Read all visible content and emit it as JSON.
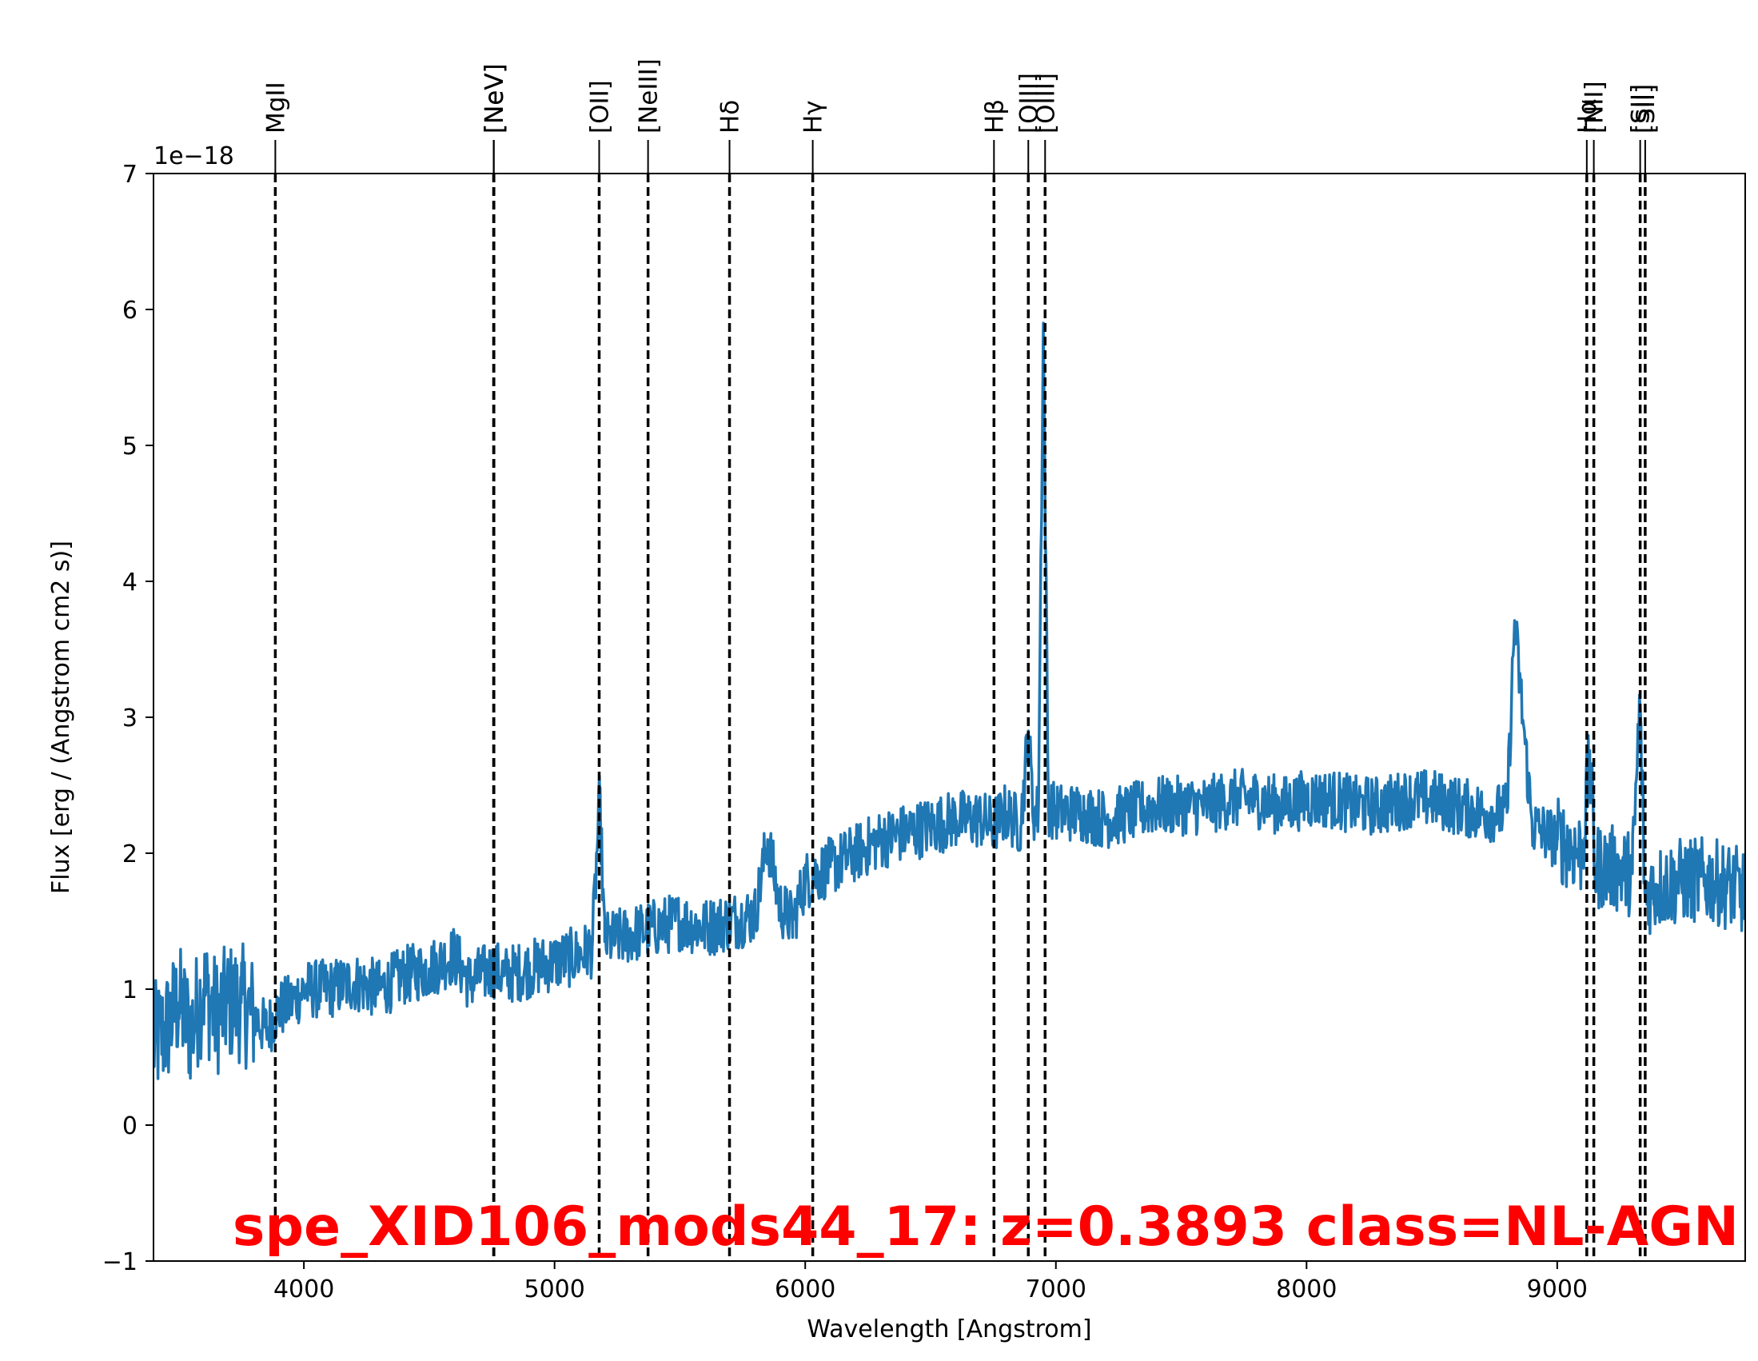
{
  "chart_data": {
    "type": "line",
    "annotation": "spe_XID106_mods44_17: z=0.3893 class=NL-AGN",
    "annotation_color": "#ff0000",
    "xlabel": "Wavelength [Angstrom]",
    "ylabel": "Flux [erg / (Angstrom cm2 s)]",
    "y_offset_label": "1e−18",
    "xlim": [
      3400,
      9750
    ],
    "ylim": [
      -1,
      7
    ],
    "x_ticks": [
      4000,
      5000,
      6000,
      7000,
      8000,
      9000
    ],
    "x_tick_labels": [
      "4000",
      "5000",
      "6000",
      "7000",
      "8000",
      "9000"
    ],
    "y_ticks": [
      -1,
      0,
      1,
      2,
      3,
      4,
      5,
      6,
      7
    ],
    "y_tick_labels": [
      "−1",
      "0",
      "1",
      "2",
      "3",
      "4",
      "5",
      "6",
      "7"
    ],
    "grid": false,
    "series_color": "#1f77b4",
    "series": [
      {
        "x": [
          3400,
          3450,
          3500,
          3550,
          3600,
          3650,
          3700,
          3750,
          3800,
          3850,
          3900,
          3950,
          4000,
          4100,
          4200,
          4300,
          4400,
          4500,
          4600,
          4660,
          4700,
          4760,
          4800,
          4900,
          5000,
          5100,
          5150,
          5180,
          5200,
          5300,
          5400,
          5500,
          5600,
          5700,
          5800,
          5850,
          5900,
          5950,
          6000,
          6050,
          6100,
          6200,
          6300,
          6400,
          6500,
          6600,
          6700,
          6750,
          6800,
          6860,
          6890,
          6910,
          6930,
          6950,
          6970,
          7000,
          7100,
          7200,
          7300,
          7400,
          7500,
          7600,
          7700,
          7800,
          7900,
          8000,
          8100,
          8200,
          8300,
          8400,
          8500,
          8600,
          8700,
          8800,
          8830,
          8900,
          9000,
          9100,
          9130,
          9150,
          9200,
          9300,
          9330,
          9350,
          9400,
          9500,
          9600,
          9700,
          9750
        ],
        "y": [
          0.6,
          0.7,
          0.9,
          0.7,
          1.0,
          0.8,
          0.9,
          0.9,
          0.8,
          0.7,
          0.85,
          0.9,
          1.0,
          1.0,
          1.05,
          1.0,
          1.1,
          1.15,
          1.25,
          1.05,
          1.1,
          1.15,
          1.1,
          1.15,
          1.2,
          1.25,
          1.3,
          2.4,
          1.35,
          1.4,
          1.45,
          1.5,
          1.45,
          1.5,
          1.55,
          2.1,
          1.6,
          1.5,
          1.8,
          1.85,
          1.9,
          2.0,
          2.1,
          2.15,
          2.2,
          2.25,
          2.25,
          2.2,
          2.3,
          2.2,
          2.9,
          2.3,
          2.3,
          5.9,
          2.35,
          2.3,
          2.3,
          2.25,
          2.3,
          2.35,
          2.35,
          2.35,
          2.4,
          2.4,
          2.35,
          2.4,
          2.4,
          2.35,
          2.35,
          2.4,
          2.4,
          2.35,
          2.3,
          2.3,
          3.7,
          2.2,
          2.1,
          2.0,
          2.7,
          1.9,
          1.9,
          1.85,
          3.1,
          1.7,
          1.75,
          1.8,
          1.8,
          1.75,
          1.7
        ]
      }
    ],
    "lines": [
      {
        "label": "MgII",
        "x": 3886
      },
      {
        "label": "[NeV]",
        "x": 4758
      },
      {
        "label": "[NeV]",
        "x": 4757
      },
      {
        "label": "[OII]",
        "x": 5178
      },
      {
        "label": "[NeIII]",
        "x": 5373
      },
      {
        "label": "Hδ",
        "x": 5698
      },
      {
        "label": "Hγ",
        "x": 6030
      },
      {
        "label": "Hβ",
        "x": 6753
      },
      {
        "label": "[OIII]",
        "x": 6890
      },
      {
        "label": "[OIII]",
        "x": 6957
      },
      {
        "label": "Hα",
        "x": 9118
      },
      {
        "label": "[NII]",
        "x": 9146
      },
      {
        "label": "[SII]",
        "x": 9331
      },
      {
        "label": "[SII]",
        "x": 9351
      }
    ]
  }
}
